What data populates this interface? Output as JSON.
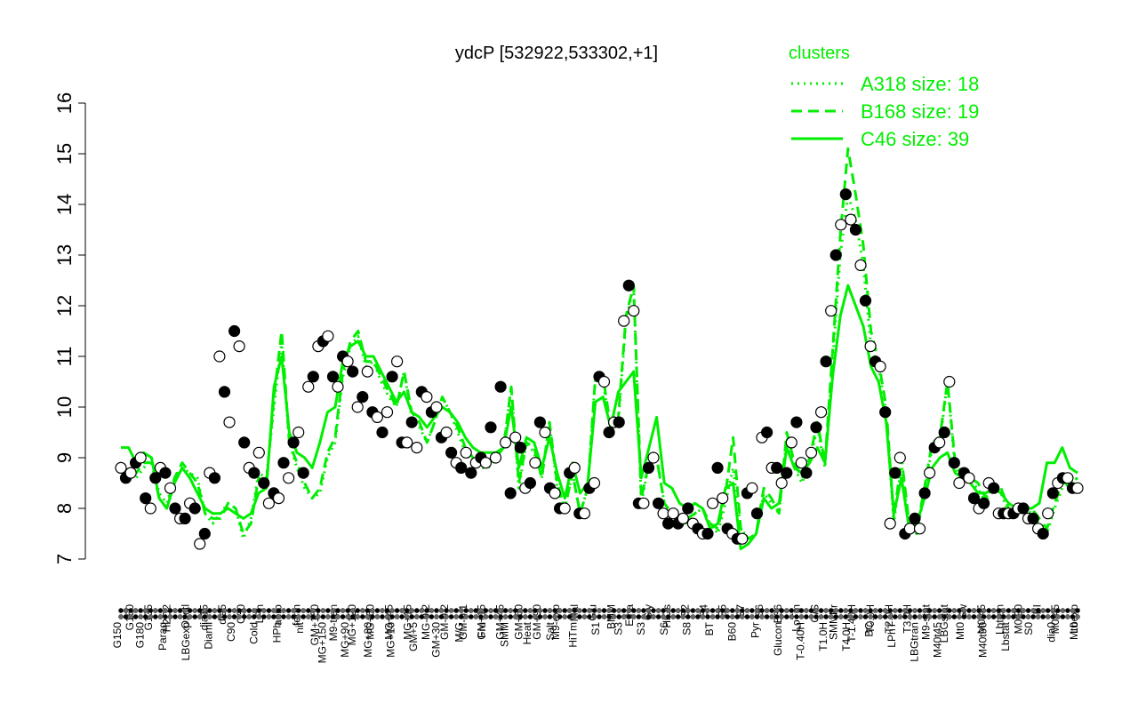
{
  "chart_data": {
    "type": "line",
    "title": "ydcP [532922,533302,+1]",
    "xlabel": "",
    "ylabel": "",
    "ylim": [
      7,
      16
    ],
    "yticks": [
      7,
      8,
      9,
      10,
      11,
      12,
      13,
      14,
      15,
      16
    ],
    "grid": false,
    "legend": {
      "title": "clusters",
      "position": "top-right",
      "color": "#00ee00",
      "entries": [
        {
          "label": "A318 size: 18",
          "style": "dotted"
        },
        {
          "label": "B168 size: 19",
          "style": "dashed"
        },
        {
          "label": "C46 size: 39",
          "style": "solid"
        }
      ]
    },
    "x_tick_labels_top": [
      "G150",
      "G135",
      "H2O2",
      "Oxctl",
      "dia15",
      "dia5",
      "C30",
      "LPh",
      "aero",
      "ferm",
      "GM+150",
      "M9-tran",
      "MG+120",
      "MG+60",
      "MG+45",
      "MG+15",
      "MG-0.2",
      "GM-0.2",
      "GM-0.1",
      "GM+15",
      "GM+45",
      "GM+60",
      "GM+90",
      "M9-exp",
      "Mal",
      "Glu",
      "BMM",
      "Etha",
      "Gly",
      "HiOs",
      "S2",
      "S4",
      "S5",
      "S7",
      "S6",
      "B36",
      "LoTm",
      "G/S",
      "SMMPr",
      "T-1.40H",
      "T0.0H",
      "T2.0H",
      "T3.0H",
      "M9-stat",
      "LBGstat",
      "Sw",
      "M0t45",
      "Lbtran",
      "M0t90",
      "BI",
      "M0t45",
      "Lbexp"
    ],
    "x_tick_labels_bottom": [
      "G150",
      "G180",
      "Paraq",
      "LBGexp",
      "Diami",
      "C90",
      "Cold",
      "HPh",
      "nit",
      "MG+150",
      "MG+90",
      "MG+30",
      "MG+10",
      "GM+5",
      "GM+30",
      "M/G",
      "Fru",
      "SMM",
      "Heat",
      "Salt",
      "HiTm",
      "S1",
      "S3",
      "S3",
      "S6",
      "S8",
      "BT",
      "B60",
      "Pyr",
      "Glucon",
      "T-0.40H",
      "T1.0H",
      "T4.0H",
      "BC",
      "LPhT",
      "LBGtran",
      "M40t45",
      "Mt0",
      "M40t90",
      "Lbstat",
      "S0",
      "dia0",
      "Mt0"
    ],
    "series": [
      {
        "name": "A318 size: 18",
        "style": "dotted",
        "y": [
          8.8,
          8.7,
          8.6,
          8.8,
          9.0,
          8.3,
          8.1,
          8.6,
          8.8,
          8.7,
          8.6,
          7.9,
          7.7,
          7.9,
          8.1,
          8.0,
          7.4,
          7.8,
          8.7,
          8.6,
          10.0,
          11.3,
          9.3,
          8.8,
          8.4,
          8.2,
          8.3,
          9.0,
          9.3,
          10.6,
          11.2,
          11.4,
          10.8,
          10.9,
          10.5,
          10.2,
          10.0,
          10.7,
          9.8,
          9.6,
          9.3,
          9.7,
          10.2,
          9.9,
          9.5,
          9.1,
          8.9,
          8.8,
          8.8,
          9.0,
          9.2,
          10.4,
          8.4,
          9.3,
          9.1,
          8.6,
          9.7,
          8.4,
          8.0,
          8.7,
          7.9,
          8.4,
          10.6,
          10.5,
          9.5,
          9.7,
          11.7,
          12.4,
          8.1,
          8.9,
          9.0,
          8.1,
          7.9,
          7.8,
          7.7,
          7.9,
          8.0,
          7.7,
          7.5,
          8.1,
          8.8,
          7.6,
          7.4,
          7.5,
          8.3,
          8.1,
          7.9,
          9.4,
          8.8,
          8.5,
          8.9,
          9.6,
          8.8,
          10.9,
          13.0,
          14.2,
          13.7,
          12.8,
          11.2,
          10.8,
          9.9,
          7.7,
          8.9,
          7.6,
          7.5,
          8.3,
          9.2,
          9.3,
          10.5,
          8.8,
          8.6,
          8.5,
          8.4,
          8.1,
          8.5,
          8.3,
          7.9,
          7.9,
          8.0,
          7.9,
          7.7,
          7.5,
          8.0,
          8.4,
          8.5,
          8.6
        ]
      },
      {
        "name": "B168 size: 19",
        "style": "dashed",
        "y": [
          8.8,
          8.6,
          8.7,
          8.9,
          8.9,
          8.2,
          8.0,
          8.6,
          8.9,
          8.7,
          8.5,
          7.9,
          7.8,
          7.8,
          8.1,
          8.0,
          7.5,
          7.7,
          8.6,
          8.5,
          10.2,
          11.5,
          9.3,
          8.9,
          8.5,
          8.2,
          8.4,
          9.1,
          9.4,
          10.7,
          11.3,
          11.5,
          10.9,
          10.9,
          10.6,
          10.3,
          10.0,
          10.7,
          9.9,
          9.7,
          9.3,
          9.7,
          10.2,
          9.9,
          9.6,
          9.2,
          9.0,
          8.9,
          8.9,
          9.0,
          9.2,
          10.4,
          8.5,
          9.3,
          9.2,
          8.6,
          9.7,
          8.5,
          8.0,
          8.7,
          7.9,
          8.4,
          10.6,
          10.6,
          9.6,
          9.8,
          11.8,
          12.4,
          8.2,
          8.9,
          9.0,
          8.1,
          7.9,
          7.8,
          7.8,
          7.9,
          8.0,
          7.7,
          7.6,
          8.3,
          9.4,
          7.6,
          7.4,
          7.5,
          8.4,
          8.2,
          7.9,
          9.5,
          8.9,
          8.6,
          9.0,
          9.7,
          8.9,
          11.1,
          13.4,
          15.1,
          14.2,
          13.2,
          11.5,
          10.9,
          10.0,
          7.8,
          9.0,
          7.7,
          7.6,
          8.4,
          9.3,
          9.4,
          10.5,
          8.9,
          8.7,
          8.6,
          8.5,
          8.2,
          8.5,
          8.4,
          8.0,
          7.9,
          8.0,
          8.0,
          7.8,
          7.6,
          8.1,
          8.5,
          8.5,
          8.6
        ]
      },
      {
        "name": "C46 size: 39",
        "style": "solid",
        "y": [
          9.2,
          9.2,
          8.9,
          9.1,
          9.0,
          8.2,
          8.0,
          8.5,
          8.8,
          8.6,
          8.3,
          8.0,
          7.9,
          7.9,
          8.0,
          7.9,
          7.8,
          7.9,
          8.3,
          8.4,
          10.4,
          11.0,
          9.5,
          9.1,
          9.0,
          8.8,
          9.3,
          9.9,
          10.0,
          10.9,
          11.2,
          11.3,
          11.0,
          11.0,
          10.7,
          10.4,
          10.1,
          10.3,
          9.9,
          9.8,
          9.6,
          9.8,
          10.0,
          9.9,
          9.7,
          9.4,
          9.2,
          9.1,
          9.1,
          9.1,
          9.2,
          10.0,
          8.8,
          9.4,
          9.3,
          8.8,
          9.4,
          8.7,
          8.2,
          8.9,
          8.3,
          8.5,
          10.1,
          10.2,
          9.6,
          10.3,
          10.5,
          10.7,
          8.6,
          9.2,
          9.8,
          8.5,
          8.4,
          8.1,
          8.0,
          8.1,
          8.0,
          7.6,
          7.7,
          8.4,
          8.5,
          7.2,
          7.3,
          7.5,
          8.2,
          8.0,
          8.1,
          9.2,
          8.8,
          8.7,
          8.9,
          9.2,
          8.9,
          10.6,
          11.8,
          12.4,
          12.0,
          11.6,
          10.8,
          10.5,
          9.7,
          7.9,
          8.6,
          7.6,
          7.7,
          8.2,
          8.8,
          9.0,
          9.1,
          8.7,
          8.6,
          8.5,
          8.3,
          8.3,
          8.4,
          8.3,
          8.1,
          8.0,
          8.0,
          8.0,
          8.1,
          8.9,
          8.9,
          9.2,
          8.8,
          8.7
        ]
      }
    ],
    "points": [
      {
        "x": 0,
        "y": 8.8
      },
      {
        "x": 1,
        "y": 8.6
      },
      {
        "x": 2,
        "y": 8.7
      },
      {
        "x": 3,
        "y": 8.9
      },
      {
        "x": 4,
        "y": 9.0
      },
      {
        "x": 5,
        "y": 8.2
      },
      {
        "x": 6,
        "y": 8.0
      },
      {
        "x": 7,
        "y": 8.6
      },
      {
        "x": 8,
        "y": 8.8
      },
      {
        "x": 9,
        "y": 8.7
      },
      {
        "x": 10,
        "y": 8.4
      },
      {
        "x": 11,
        "y": 8.0
      },
      {
        "x": 12,
        "y": 7.8
      },
      {
        "x": 13,
        "y": 7.8
      },
      {
        "x": 14,
        "y": 8.1
      },
      {
        "x": 15,
        "y": 8.0
      },
      {
        "x": 16,
        "y": 7.3
      },
      {
        "x": 17,
        "y": 7.5
      },
      {
        "x": 18,
        "y": 8.7
      },
      {
        "x": 19,
        "y": 8.6
      },
      {
        "x": 20,
        "y": 11.0
      },
      {
        "x": 21,
        "y": 10.3
      },
      {
        "x": 22,
        "y": 9.7
      },
      {
        "x": 23,
        "y": 11.5
      },
      {
        "x": 24,
        "y": 11.2
      },
      {
        "x": 25,
        "y": 9.3
      },
      {
        "x": 26,
        "y": 8.8
      },
      {
        "x": 27,
        "y": 8.7
      },
      {
        "x": 28,
        "y": 9.1
      },
      {
        "x": 29,
        "y": 8.5
      },
      {
        "x": 30,
        "y": 8.1
      },
      {
        "x": 31,
        "y": 8.3
      },
      {
        "x": 32,
        "y": 8.2
      },
      {
        "x": 33,
        "y": 8.9
      },
      {
        "x": 34,
        "y": 8.6
      },
      {
        "x": 35,
        "y": 9.3
      },
      {
        "x": 36,
        "y": 9.5
      },
      {
        "x": 37,
        "y": 8.7
      },
      {
        "x": 38,
        "y": 10.4
      },
      {
        "x": 39,
        "y": 10.6
      },
      {
        "x": 40,
        "y": 11.2
      },
      {
        "x": 41,
        "y": 11.3
      },
      {
        "x": 42,
        "y": 11.4
      },
      {
        "x": 43,
        "y": 10.6
      },
      {
        "x": 44,
        "y": 10.4
      },
      {
        "x": 45,
        "y": 11.0
      },
      {
        "x": 46,
        "y": 10.9
      },
      {
        "x": 47,
        "y": 10.7
      },
      {
        "x": 48,
        "y": 10.0
      },
      {
        "x": 49,
        "y": 10.2
      },
      {
        "x": 50,
        "y": 10.7
      },
      {
        "x": 51,
        "y": 9.9
      },
      {
        "x": 52,
        "y": 9.8
      },
      {
        "x": 53,
        "y": 9.5
      },
      {
        "x": 54,
        "y": 9.9
      },
      {
        "x": 55,
        "y": 10.6
      },
      {
        "x": 56,
        "y": 10.9
      },
      {
        "x": 57,
        "y": 9.3
      },
      {
        "x": 58,
        "y": 9.3
      },
      {
        "x": 59,
        "y": 9.7
      },
      {
        "x": 60,
        "y": 9.2
      },
      {
        "x": 61,
        "y": 10.3
      },
      {
        "x": 62,
        "y": 10.2
      },
      {
        "x": 63,
        "y": 9.9
      },
      {
        "x": 64,
        "y": 10.0
      },
      {
        "x": 65,
        "y": 9.4
      },
      {
        "x": 66,
        "y": 9.5
      },
      {
        "x": 67,
        "y": 9.1
      },
      {
        "x": 68,
        "y": 8.9
      },
      {
        "x": 69,
        "y": 8.8
      },
      {
        "x": 70,
        "y": 9.1
      },
      {
        "x": 71,
        "y": 8.7
      },
      {
        "x": 72,
        "y": 8.9
      },
      {
        "x": 73,
        "y": 9.0
      },
      {
        "x": 74,
        "y": 8.9
      },
      {
        "x": 75,
        "y": 9.6
      },
      {
        "x": 76,
        "y": 9.0
      },
      {
        "x": 77,
        "y": 10.4
      },
      {
        "x": 78,
        "y": 9.3
      },
      {
        "x": 79,
        "y": 8.3
      },
      {
        "x": 80,
        "y": 9.4
      },
      {
        "x": 81,
        "y": 9.2
      },
      {
        "x": 82,
        "y": 8.4
      },
      {
        "x": 83,
        "y": 8.5
      },
      {
        "x": 84,
        "y": 8.9
      },
      {
        "x": 85,
        "y": 9.7
      },
      {
        "x": 86,
        "y": 9.5
      },
      {
        "x": 87,
        "y": 8.4
      },
      {
        "x": 88,
        "y": 8.3
      },
      {
        "x": 89,
        "y": 8.0
      },
      {
        "x": 90,
        "y": 8.0
      },
      {
        "x": 91,
        "y": 8.7
      },
      {
        "x": 92,
        "y": 8.8
      },
      {
        "x": 93,
        "y": 7.9
      },
      {
        "x": 94,
        "y": 7.9
      },
      {
        "x": 95,
        "y": 8.4
      },
      {
        "x": 96,
        "y": 8.5
      },
      {
        "x": 97,
        "y": 10.6
      },
      {
        "x": 98,
        "y": 10.5
      },
      {
        "x": 99,
        "y": 9.5
      },
      {
        "x": 100,
        "y": 9.7
      },
      {
        "x": 101,
        "y": 9.7
      },
      {
        "x": 102,
        "y": 11.7
      },
      {
        "x": 103,
        "y": 12.4
      },
      {
        "x": 104,
        "y": 11.9
      },
      {
        "x": 105,
        "y": 8.1
      },
      {
        "x": 106,
        "y": 8.1
      },
      {
        "x": 107,
        "y": 8.8
      },
      {
        "x": 108,
        "y": 9.0
      },
      {
        "x": 109,
        "y": 8.1
      },
      {
        "x": 110,
        "y": 7.9
      },
      {
        "x": 111,
        "y": 7.7
      },
      {
        "x": 112,
        "y": 7.9
      },
      {
        "x": 113,
        "y": 7.7
      },
      {
        "x": 114,
        "y": 7.8
      },
      {
        "x": 115,
        "y": 8.0
      },
      {
        "x": 116,
        "y": 7.7
      },
      {
        "x": 117,
        "y": 7.6
      },
      {
        "x": 118,
        "y": 7.5
      },
      {
        "x": 119,
        "y": 7.5
      },
      {
        "x": 120,
        "y": 8.1
      },
      {
        "x": 121,
        "y": 8.8
      },
      {
        "x": 122,
        "y": 8.2
      },
      {
        "x": 123,
        "y": 7.6
      },
      {
        "x": 124,
        "y": 7.5
      },
      {
        "x": 125,
        "y": 7.4
      },
      {
        "x": 126,
        "y": 7.4
      },
      {
        "x": 127,
        "y": 8.3
      },
      {
        "x": 128,
        "y": 8.4
      },
      {
        "x": 129,
        "y": 7.9
      },
      {
        "x": 130,
        "y": 9.4
      },
      {
        "x": 131,
        "y": 9.5
      },
      {
        "x": 132,
        "y": 8.8
      },
      {
        "x": 133,
        "y": 8.8
      },
      {
        "x": 134,
        "y": 8.5
      },
      {
        "x": 135,
        "y": 8.7
      },
      {
        "x": 136,
        "y": 9.3
      },
      {
        "x": 137,
        "y": 9.7
      },
      {
        "x": 138,
        "y": 8.9
      },
      {
        "x": 139,
        "y": 8.7
      },
      {
        "x": 140,
        "y": 9.1
      },
      {
        "x": 141,
        "y": 9.6
      },
      {
        "x": 142,
        "y": 9.9
      },
      {
        "x": 143,
        "y": 10.9
      },
      {
        "x": 144,
        "y": 11.9
      },
      {
        "x": 145,
        "y": 13.0
      },
      {
        "x": 146,
        "y": 13.6
      },
      {
        "x": 147,
        "y": 14.2
      },
      {
        "x": 148,
        "y": 13.7
      },
      {
        "x": 149,
        "y": 13.5
      },
      {
        "x": 150,
        "y": 12.8
      },
      {
        "x": 151,
        "y": 12.1
      },
      {
        "x": 152,
        "y": 11.2
      },
      {
        "x": 153,
        "y": 10.9
      },
      {
        "x": 154,
        "y": 10.8
      },
      {
        "x": 155,
        "y": 9.9
      },
      {
        "x": 156,
        "y": 7.7
      },
      {
        "x": 157,
        "y": 8.7
      },
      {
        "x": 158,
        "y": 9.0
      },
      {
        "x": 159,
        "y": 7.5
      },
      {
        "x": 160,
        "y": 7.6
      },
      {
        "x": 161,
        "y": 7.8
      },
      {
        "x": 162,
        "y": 7.6
      },
      {
        "x": 163,
        "y": 8.3
      },
      {
        "x": 164,
        "y": 8.7
      },
      {
        "x": 165,
        "y": 9.2
      },
      {
        "x": 166,
        "y": 9.3
      },
      {
        "x": 167,
        "y": 9.5
      },
      {
        "x": 168,
        "y": 10.5
      },
      {
        "x": 169,
        "y": 8.9
      },
      {
        "x": 170,
        "y": 8.5
      },
      {
        "x": 171,
        "y": 8.7
      },
      {
        "x": 172,
        "y": 8.6
      },
      {
        "x": 173,
        "y": 8.2
      },
      {
        "x": 174,
        "y": 8.0
      },
      {
        "x": 175,
        "y": 8.1
      },
      {
        "x": 176,
        "y": 8.5
      },
      {
        "x": 177,
        "y": 8.4
      },
      {
        "x": 178,
        "y": 7.9
      },
      {
        "x": 179,
        "y": 7.9
      },
      {
        "x": 180,
        "y": 7.9
      },
      {
        "x": 181,
        "y": 7.9
      },
      {
        "x": 182,
        "y": 8.0
      },
      {
        "x": 183,
        "y": 8.0
      },
      {
        "x": 184,
        "y": 7.8
      },
      {
        "x": 185,
        "y": 7.8
      },
      {
        "x": 186,
        "y": 7.6
      },
      {
        "x": 187,
        "y": 7.5
      },
      {
        "x": 188,
        "y": 7.9
      },
      {
        "x": 189,
        "y": 8.3
      },
      {
        "x": 190,
        "y": 8.5
      },
      {
        "x": 191,
        "y": 8.6
      },
      {
        "x": 192,
        "y": 8.6
      },
      {
        "x": 193,
        "y": 8.4
      },
      {
        "x": 194,
        "y": 8.4
      }
    ],
    "points_filled_every": 2,
    "colors": {
      "lines": "#00ee00",
      "points_fill": "#000000",
      "points_open": "#ffffff",
      "text": "#000000"
    }
  }
}
